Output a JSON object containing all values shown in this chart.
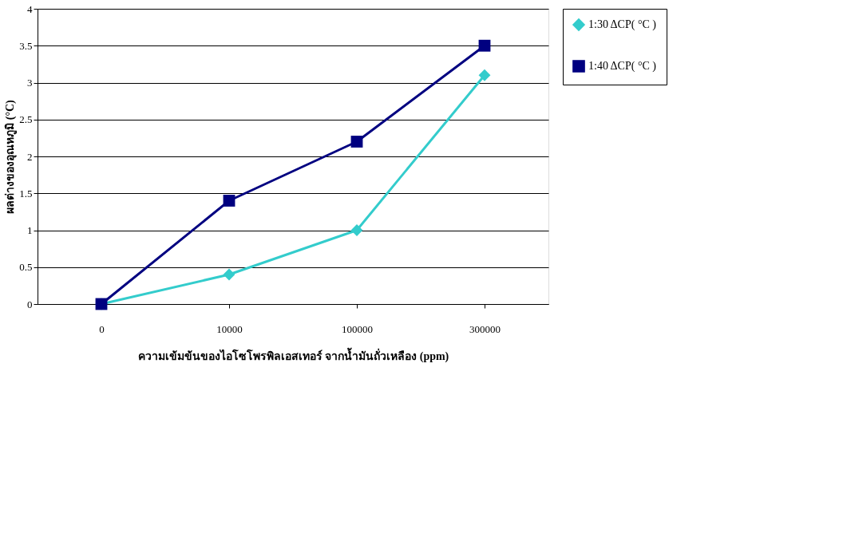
{
  "chart_data": {
    "type": "line",
    "xlabel": "ความเข้มข้นของไอโซโพรพิลเอสเทอร์ จากน้ำมันถั่วเหลือง (ppm)",
    "ylabel": "ผลต่างของอุณหภูมิ (°C)",
    "categories": [
      "0",
      "10000",
      "100000",
      "300000"
    ],
    "series": [
      {
        "name": "1:30 ΔCP( °C )",
        "color": "#33cccc",
        "marker": "diamond",
        "values": [
          0,
          0.4,
          1,
          3.1
        ]
      },
      {
        "name": "1:40 ΔCP( °C )",
        "color": "#000080",
        "marker": "square",
        "values": [
          0,
          1.4,
          2.2,
          3.5
        ]
      }
    ],
    "ylim": [
      0,
      4
    ],
    "yticks": [
      0,
      0.5,
      1,
      1.5,
      2,
      2.5,
      3,
      3.5,
      4
    ],
    "grid": "y",
    "legend": "right",
    "line_style": "solid"
  }
}
